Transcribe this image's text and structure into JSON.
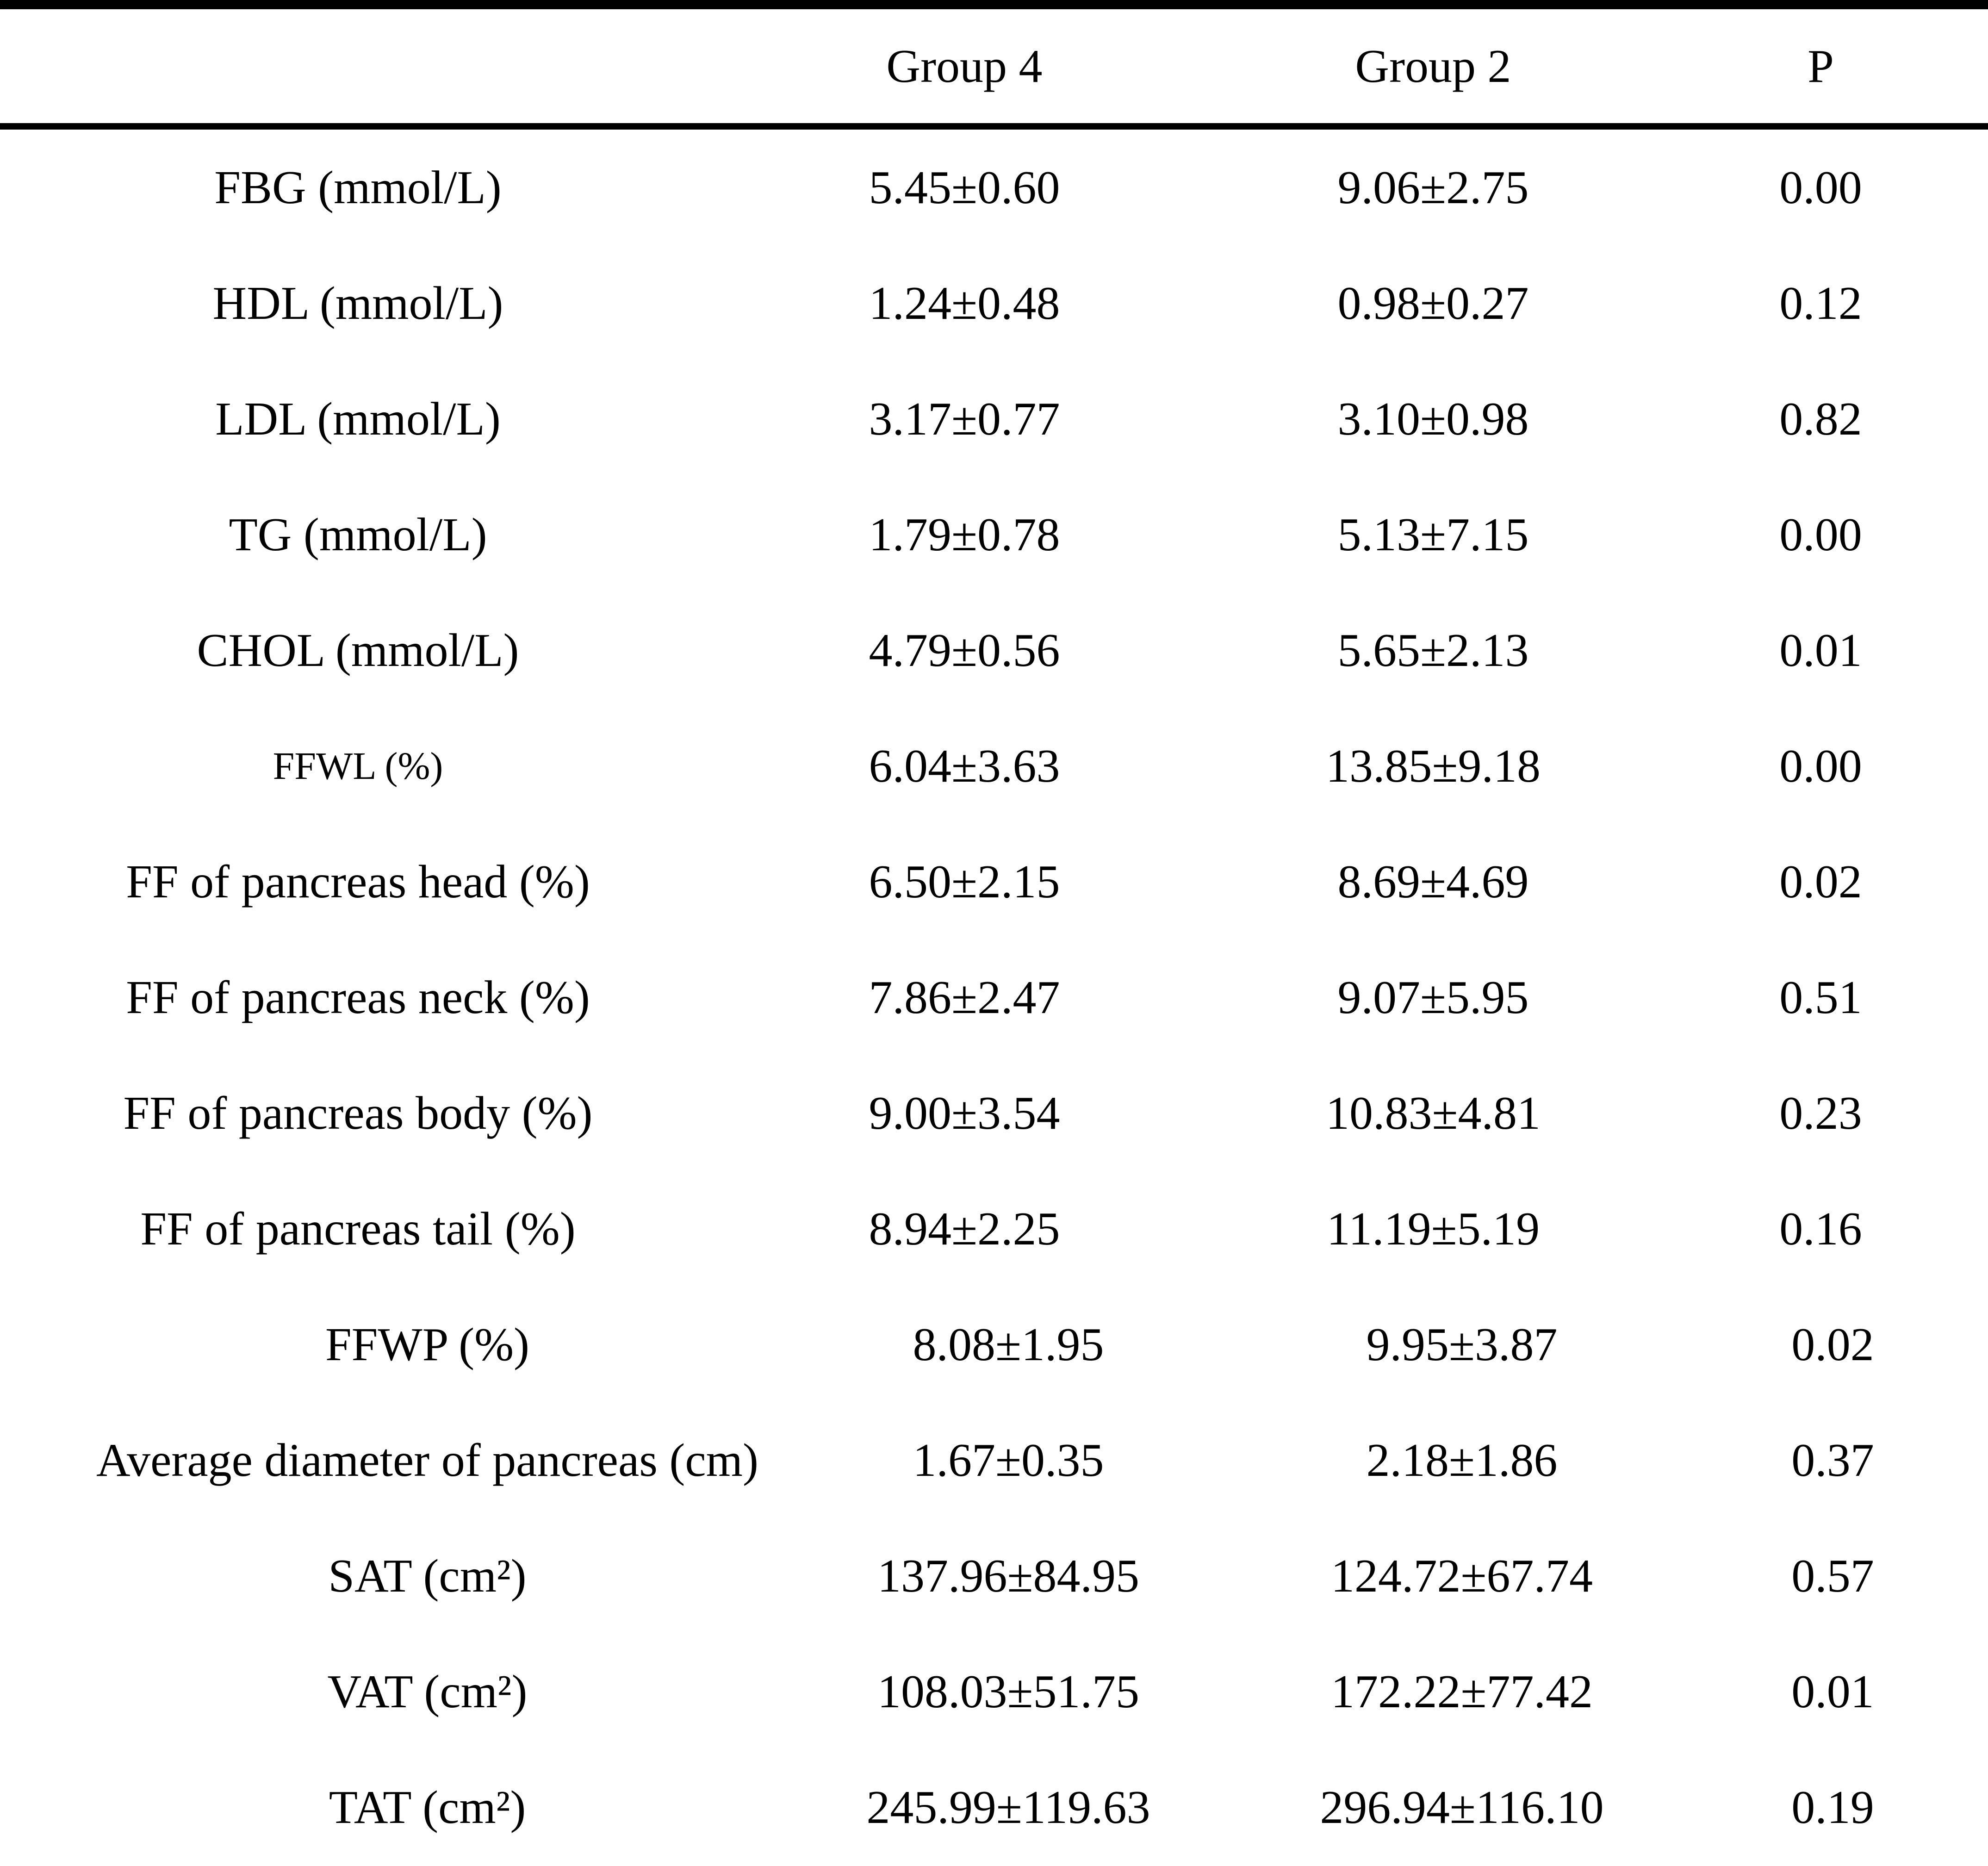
{
  "table": {
    "columns": [
      "",
      "Group 4",
      "Group 2",
      "P"
    ],
    "rows": [
      {
        "label": "FBG（mmol/L）",
        "group4": "5.45±0.60",
        "group2": "9.06±2.75",
        "p": "0.00"
      },
      {
        "label": "HDL（mmol/L）",
        "group4": "1.24±0.48",
        "group2": "0.98±0.27",
        "p": "0.12"
      },
      {
        "label": "LDL（mmol/L）",
        "group4": "3.17±0.77",
        "group2": "3.10±0.98",
        "p": "0.82"
      },
      {
        "label": "TG（mmol/L）",
        "group4": "1.79±0.78",
        "group2": "5.13±7.15",
        "p": "0.00"
      },
      {
        "label": "CHOL（mmol/L）",
        "group4": "4.79±0.56",
        "group2": "5.65±2.13",
        "p": "0.01"
      },
      {
        "label": "FFWL（%）",
        "group4": "6.04±3.63",
        "group2": "13.85±9.18",
        "p": "0.00"
      },
      {
        "label": "FF of pancreas head（%）",
        "group4": "6.50±2.15",
        "group2": "8.69±4.69",
        "p": "0.02"
      },
      {
        "label": "FF of pancreas neck（%）",
        "group4": "7.86±2.47",
        "group2": "9.07±5.95",
        "p": "0.51"
      },
      {
        "label": "FF of pancreas body（%）",
        "group4": "9.00±3.54",
        "group2": "10.83±4.81",
        "p": "0.23"
      },
      {
        "label": "FF of pancreas tail（%）",
        "group4": "8.94±2.25",
        "group2": "11.19±5.19",
        "p": "0.16"
      },
      {
        "label": "FFWP（%）",
        "group4": "8.08±1.95",
        "group2": "9.95±3.87",
        "p": "0.02"
      },
      {
        "label": "Average diameter of pancreas（cm）",
        "group4": "1.67±0.35",
        "group2": "2.18±1.86",
        "p": "0.37"
      },
      {
        "label": "SAT（cm²）",
        "group4": "137.96±84.95",
        "group2": "124.72±67.74",
        "p": "0.57"
      },
      {
        "label": "VAT（cm²）",
        "group4": "108.03±51.75",
        "group2": "172.22±77.42",
        "p": "0.01"
      },
      {
        "label": "TAT（cm²）",
        "group4": "245.99±119.63",
        "group2": "296.94±116.10",
        "p": "0.19"
      }
    ],
    "colors": {
      "text": "#000000",
      "background": "#ffffff",
      "rule": "#000000"
    }
  }
}
